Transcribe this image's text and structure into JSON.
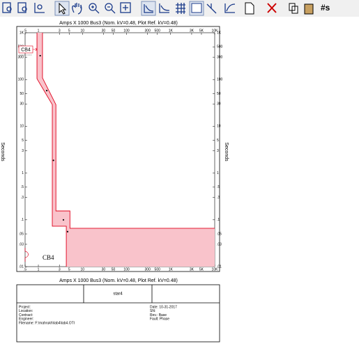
{
  "toolbar": {
    "label": "#s"
  },
  "plot": {
    "top_label": "Amps  X  1000   Bus3 (Nom. kV=0.48, Plot Ref. kV=0.48)",
    "bottom_label": "Amps  X  1000   Bus3 (Nom. kV=0.48, Plot Ref. kV=0.48)",
    "y_label": "Seconds",
    "log_x": true,
    "log_y": true,
    "xlim": [
      0.5,
      10000
    ],
    "xticks": [
      {
        "value": 0.5,
        "label": ".5"
      },
      1,
      3,
      5,
      10,
      30,
      50,
      100,
      300,
      500,
      {
        "value": 1000,
        "label": "1K"
      },
      {
        "value": 3000,
        "label": "3K"
      },
      {
        "value": 5000,
        "label": "5K"
      },
      {
        "value": 10000,
        "label": "10K"
      }
    ],
    "ylim": [
      0.01,
      1000
    ],
    "yticks": [
      {
        "value": 1000,
        "label": "1K"
      },
      500,
      300,
      100,
      50,
      30,
      10,
      5,
      3,
      1,
      {
        "value": 0.5,
        "label": ".5"
      },
      {
        "value": 0.3,
        "label": ".3"
      },
      {
        "value": 0.1,
        "label": ".1"
      },
      {
        "value": 0.05,
        "label": ".05"
      },
      {
        "value": 0.03,
        "label": ".03"
      },
      {
        "value": 0.01,
        "label": ".01"
      }
    ],
    "device_tag": "CB4",
    "curve_label": "CB4",
    "color": "#e0001b",
    "fill": "#f9c3cb",
    "curves": [
      {
        "x": [
          0.93,
          0.93,
          2.07,
          2.07,
          4.3,
          4.3
        ],
        "y": [
          1000,
          104,
          29,
          0.073,
          0.073,
          0.01
        ]
      },
      {
        "x": [
          1.24,
          1.24,
          2.5,
          2.5,
          5.2,
          5.2,
          10000
        ],
        "y": [
          1000,
          108,
          29,
          0.155,
          0.155,
          0.066,
          0.066
        ]
      }
    ],
    "points": {
      "x": [
        1.1,
        1.55,
        2.2,
        3.7,
        4.6
      ],
      "y": [
        323,
        58,
        1.87,
        0.1,
        0.056
      ]
    }
  },
  "title_block": {
    "name": "star4",
    "left": [
      "Project:",
      "Location:",
      "Contract:",
      "Engineer:",
      "Filename:  F:\\mahrukh\\lab4\\lab4.OTI"
    ],
    "right": [
      "Date:  10-31-2017",
      "SN:",
      "Rev.:   Base",
      "Fault:  Phase"
    ]
  }
}
